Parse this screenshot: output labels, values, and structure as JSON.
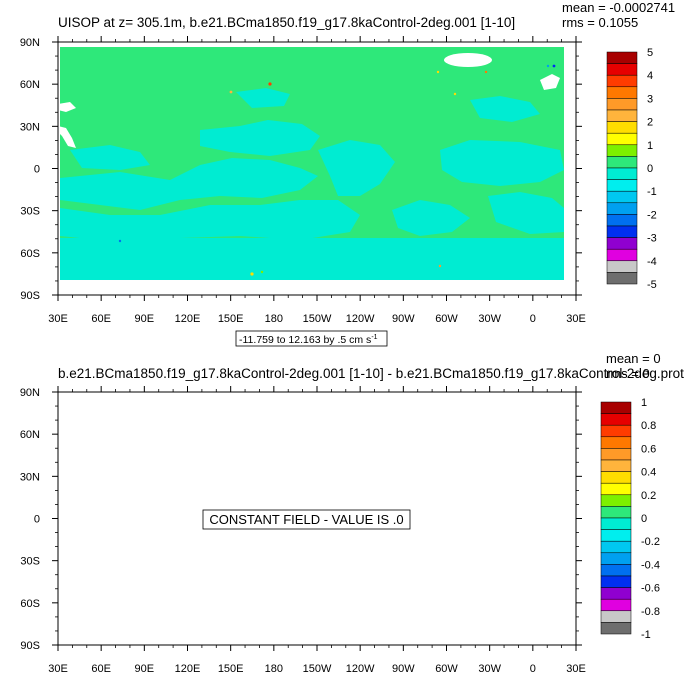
{
  "colors": {
    "ocean_main": "#2ee87a",
    "ocean_low": "#00ecd2",
    "land": "#ffffff",
    "missing": "#ffffff"
  },
  "chart_data": [
    {
      "type": "heatmap",
      "projection": "cylindrical-equidistant",
      "title": "UISOP at z= 305.1m, b.e21.BCma1850.f19_g17.8kaControl-2deg.001 [1-10]",
      "mean_text": "mean = -0.0002741",
      "rms_text": "rms = 0.1055",
      "mean": -0.0002741,
      "rms": 0.1055,
      "info_box": "-11.759 to 12.163 by .5 cm s",
      "info_superscript": "-1",
      "longitude_range": [
        30,
        390
      ],
      "latitude_range": [
        -90,
        90
      ],
      "x_ticks": [
        "30E",
        "60E",
        "90E",
        "120E",
        "150E",
        "180",
        "150W",
        "120W",
        "90W",
        "60W",
        "30W",
        "0",
        "30E"
      ],
      "y_ticks": [
        "90N",
        "60N",
        "30N",
        "0",
        "30S",
        "60S",
        "90S"
      ],
      "colorbar": {
        "labels": [
          "5",
          "4",
          "3",
          "2",
          "1",
          "0",
          "-1",
          "-2",
          "-3",
          "-4",
          "-5"
        ],
        "colors": [
          "#a80000",
          "#e60000",
          "#ff3c00",
          "#ff7800",
          "#ff9a28",
          "#ffb43c",
          "#ffdd00",
          "#ffff00",
          "#7df000",
          "#2ee87a",
          "#00ecd2",
          "#00eeee",
          "#00c8f0",
          "#00a0f0",
          "#0070f0",
          "#0030f0",
          "#9000d0",
          "#e000e0",
          "#c8c8c8",
          "#6e6e6e"
        ]
      }
    },
    {
      "type": "heatmap",
      "projection": "cylindrical-equidistant",
      "title": "b.e21.BCma1850.f19_g17.8kaControl-2deg.001 [1-10] - b.e21.BCma1850.f19_g17.8kaControl-2deg.prot",
      "mean_text": "mean = 0",
      "rms_text": "rms = 0",
      "mean": 0,
      "rms": 0,
      "constant_text": "CONSTANT FIELD - VALUE IS .0",
      "longitude_range": [
        30,
        390
      ],
      "latitude_range": [
        -90,
        90
      ],
      "x_ticks": [
        "30E",
        "60E",
        "90E",
        "120E",
        "150E",
        "180",
        "150W",
        "120W",
        "90W",
        "60W",
        "30W",
        "0",
        "30E"
      ],
      "y_ticks": [
        "90N",
        "60N",
        "30N",
        "0",
        "30S",
        "60S",
        "90S"
      ],
      "colorbar": {
        "labels": [
          "1",
          "0.8",
          "0.6",
          "0.4",
          "0.2",
          "0",
          "-0.2",
          "-0.4",
          "-0.6",
          "-0.8",
          "-1"
        ],
        "colors": [
          "#a80000",
          "#e60000",
          "#ff3c00",
          "#ff7800",
          "#ff9a28",
          "#ffb43c",
          "#ffdd00",
          "#ffff00",
          "#7df000",
          "#2ee87a",
          "#00ecd2",
          "#00eeee",
          "#00c8f0",
          "#00a0f0",
          "#0070f0",
          "#0030f0",
          "#9000d0",
          "#e000e0",
          "#c8c8c8",
          "#6e6e6e"
        ]
      }
    }
  ]
}
